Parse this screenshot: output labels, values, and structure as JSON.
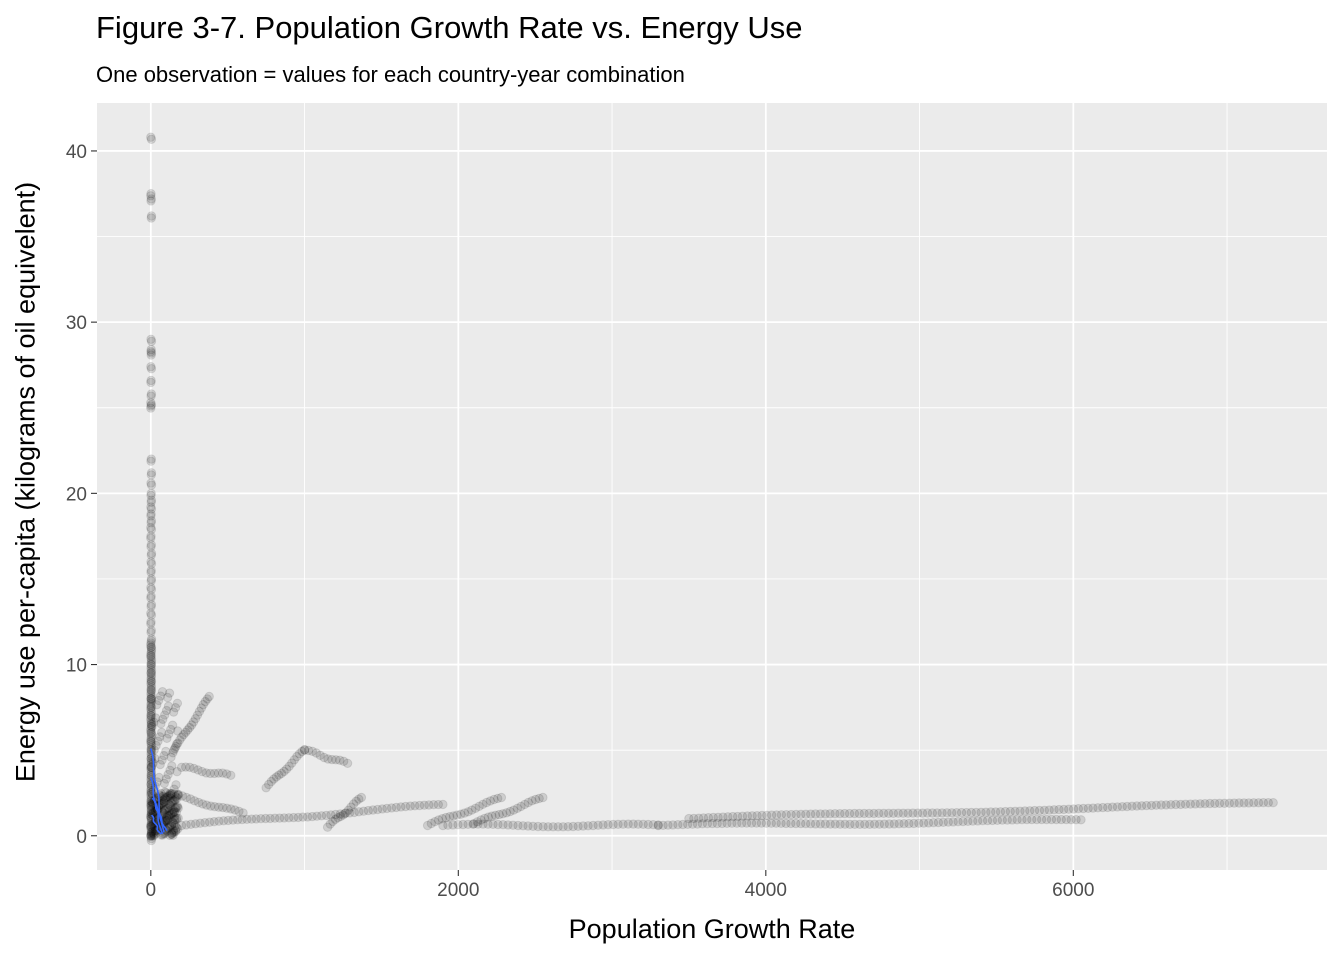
{
  "chart_data": {
    "type": "scatter",
    "title": "Figure 3-7. Population Growth Rate vs. Energy Use",
    "subtitle": "One observation = values for each country-year combination",
    "xlabel": "Population Growth Rate",
    "ylabel": "Energy use per-capita (kilograms of oil equivelent)",
    "xlim": [
      -350,
      7650
    ],
    "ylim": [
      -2,
      42.8
    ],
    "x_ticks": [
      0,
      2000,
      4000,
      6000
    ],
    "x_tick_labels": [
      "0",
      "2000",
      "4000",
      "6000"
    ],
    "y_ticks": [
      0,
      10,
      20,
      30,
      40
    ],
    "y_tick_labels": [
      "0",
      "10",
      "20",
      "30",
      "40"
    ],
    "grid": true,
    "panel_background": "#ebebeb",
    "point_color": "#000000",
    "point_alpha": 0.12,
    "line_color": "#3366ff",
    "series": [
      {
        "kind": "points",
        "note": "near-zero growth cluster",
        "clusters": [
          {
            "x_range": [
              0,
              5
            ],
            "y_values": [
              40.8,
              37.5,
              37.2,
              36.2,
              29.0,
              28.4,
              28.2,
              27.4,
              26.6,
              25.8,
              25.3,
              25.1,
              22.0,
              21.2,
              20.6,
              20.0,
              19.6,
              19.2,
              18.8,
              18.4,
              18.0,
              17.5,
              17.0,
              16.5,
              16.0,
              15.5,
              15.0,
              14.5,
              14.0,
              13.5,
              13.0,
              12.5,
              12.0,
              11.5,
              11.0,
              10.5,
              10.0,
              9.5,
              9.0,
              8.5,
              8.0,
              7.5,
              7.0,
              6.5,
              6.0,
              5.5,
              5.0,
              4.5,
              4.0,
              3.5,
              3.0,
              2.5,
              2.0,
              1.5,
              1.0,
              0.5,
              0.2
            ]
          }
        ]
      },
      {
        "kind": "trajectories",
        "note": "country trajectories across years",
        "paths": [
          {
            "from": [
              150,
              5.0
            ],
            "to": [
              380,
              8.1
            ]
          },
          {
            "from": [
              200,
              4.0
            ],
            "to": [
              520,
              3.5
            ]
          },
          {
            "from": [
              100,
              2.5
            ],
            "to": [
              600,
              1.3
            ]
          },
          {
            "from": [
              750,
              2.8
            ],
            "to": [
              1000,
              5.0
            ]
          },
          {
            "from": [
              1000,
              5.0
            ],
            "to": [
              1280,
              4.2
            ]
          },
          {
            "from": [
              200,
              0.6
            ],
            "to": [
              1900,
              1.8
            ]
          },
          {
            "from": [
              1150,
              0.5
            ],
            "to": [
              1370,
              2.2
            ]
          },
          {
            "from": [
              1800,
              0.6
            ],
            "to": [
              2280,
              2.2
            ]
          },
          {
            "from": [
              2100,
              0.7
            ],
            "to": [
              2550,
              2.2
            ]
          },
          {
            "from": [
              1900,
              0.6
            ],
            "to": [
              3300,
              0.6
            ]
          },
          {
            "from": [
              3300,
              0.6
            ],
            "to": [
              6050,
              0.9
            ]
          },
          {
            "from": [
              3500,
              1.0
            ],
            "to": [
              7300,
              1.9
            ]
          }
        ]
      },
      {
        "kind": "lines",
        "note": "blue per-country smoothing lines near origin",
        "paths": [
          {
            "from": [
              0,
              5.1
            ],
            "to": [
              80,
              0.2
            ]
          },
          {
            "from": [
              0,
              3.4
            ],
            "to": [
              70,
              0.1
            ]
          },
          {
            "from": [
              10,
              2.2
            ],
            "to": [
              100,
              0.3
            ]
          },
          {
            "from": [
              5,
              1.2
            ],
            "to": [
              60,
              0.1
            ]
          }
        ]
      }
    ]
  }
}
